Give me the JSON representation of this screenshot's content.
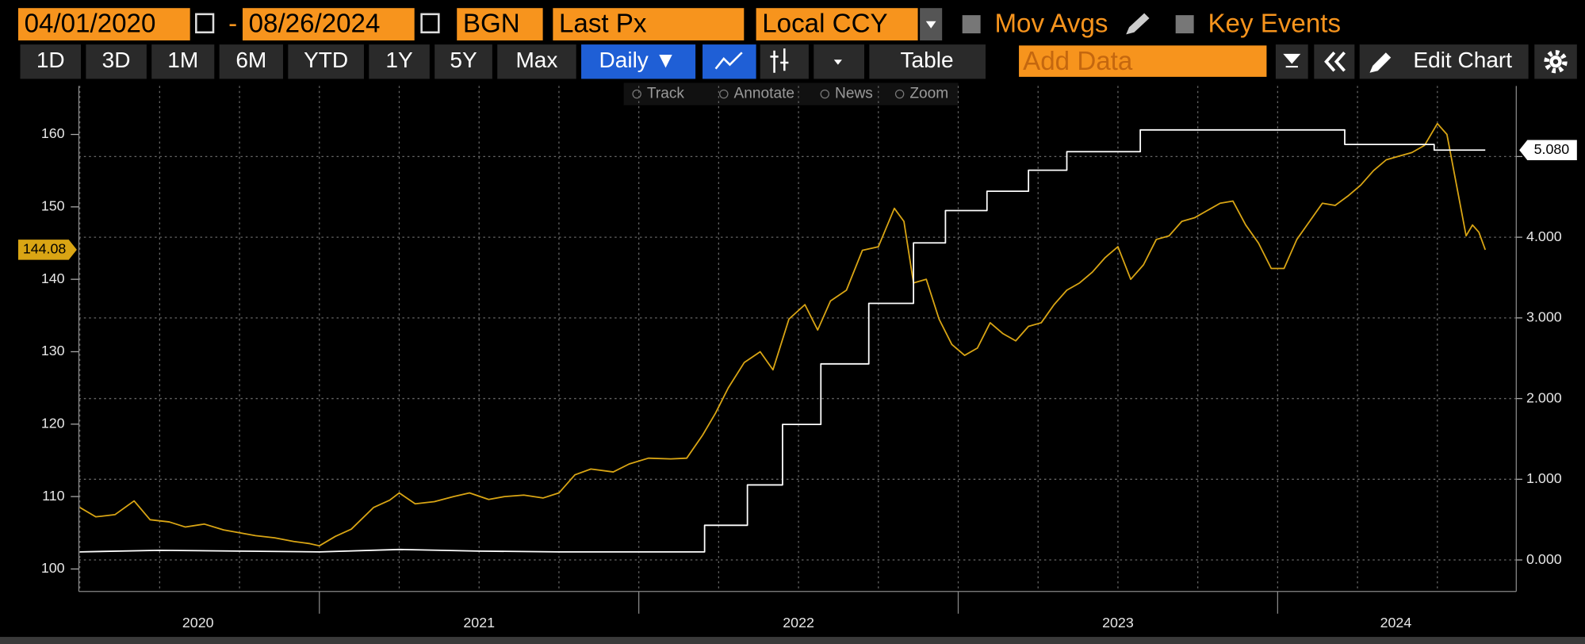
{
  "toolbar": {
    "start_date": "04/01/2020",
    "date_sep": "-",
    "end_date": "08/26/2024",
    "source": "BGN",
    "field": "Last Px",
    "currency": "Local CCY",
    "mov_avgs": "Mov Avgs",
    "key_events": "Key Events",
    "ranges": [
      "1D",
      "3D",
      "1M",
      "6M",
      "YTD",
      "1Y",
      "5Y",
      "Max"
    ],
    "frequency": "Daily ▼",
    "table": "Table",
    "add_data": "Add Data",
    "edit_chart": "Edit Chart",
    "tools": [
      "Track",
      "Annotate",
      "News",
      "Zoom"
    ]
  },
  "chart_data": {
    "type": "line",
    "xlim": [
      2020.247,
      2024.747
    ],
    "xticks": [
      {
        "value": 2020.62,
        "label": "2020"
      },
      {
        "value": 2021.5,
        "label": "2021"
      },
      {
        "value": 2022.5,
        "label": "2022"
      },
      {
        "value": 2023.5,
        "label": "2023"
      },
      {
        "value": 2024.37,
        "label": "2024"
      }
    ],
    "year_boundaries": [
      2021,
      2022,
      2023,
      2024
    ],
    "ylim": [
      96.9,
      166.7
    ],
    "yticks": [
      100,
      110,
      120,
      130,
      140,
      150,
      160
    ],
    "y2lim": [
      -0.39,
      5.875
    ],
    "y2ticks": [
      {
        "value": 0,
        "label": "0.000"
      },
      {
        "value": 1,
        "label": "1.000"
      },
      {
        "value": 2,
        "label": "2.000"
      },
      {
        "value": 3,
        "label": "3.000"
      },
      {
        "value": 4,
        "label": "4.000"
      },
      {
        "value": 5,
        "label": "5.000"
      }
    ],
    "grid": true,
    "series": [
      {
        "color": "#d9a514",
        "x": [
          2020.25,
          2020.3,
          2020.36,
          2020.42,
          2020.47,
          2020.53,
          2020.58,
          2020.64,
          2020.7,
          2020.75,
          2020.8,
          2020.86,
          2020.92,
          2020.97,
          2021.0,
          2021.05,
          2021.1,
          2021.17,
          2021.22,
          2021.25,
          2021.3,
          2021.36,
          2021.42,
          2021.47,
          2021.53,
          2021.58,
          2021.64,
          2021.7,
          2021.75,
          2021.8,
          2021.85,
          2021.92,
          2021.97,
          2022.03,
          2022.1,
          2022.15,
          2022.2,
          2022.24,
          2022.28,
          2022.33,
          2022.38,
          2022.42,
          2022.47,
          2022.52,
          2022.56,
          2022.6,
          2022.65,
          2022.7,
          2022.75,
          2022.8,
          2022.83,
          2022.86,
          2022.9,
          2022.94,
          2022.98,
          2023.02,
          2023.06,
          2023.1,
          2023.14,
          2023.18,
          2023.22,
          2023.26,
          2023.3,
          2023.34,
          2023.38,
          2023.42,
          2023.46,
          2023.5,
          2023.54,
          2023.58,
          2023.62,
          2023.66,
          2023.7,
          2023.74,
          2023.78,
          2023.82,
          2023.86,
          2023.9,
          2023.94,
          2023.98,
          2024.02,
          2024.06,
          2024.1,
          2024.14,
          2024.18,
          2024.22,
          2024.26,
          2024.3,
          2024.34,
          2024.38,
          2024.42,
          2024.46,
          2024.5,
          2024.53,
          2024.56,
          2024.59,
          2024.61,
          2024.63,
          2024.65
        ],
        "values": [
          108.5,
          107.2,
          107.5,
          109.4,
          106.8,
          106.5,
          105.8,
          106.2,
          105.4,
          105.0,
          104.6,
          104.3,
          103.8,
          103.5,
          103.2,
          104.5,
          105.5,
          108.5,
          109.5,
          110.5,
          109.0,
          109.3,
          110.0,
          110.5,
          109.6,
          110.0,
          110.2,
          109.8,
          110.5,
          113.0,
          113.8,
          113.4,
          114.5,
          115.3,
          115.2,
          115.3,
          118.5,
          121.5,
          125.0,
          128.5,
          130.0,
          127.5,
          134.5,
          136.5,
          133.0,
          137.0,
          138.5,
          144.0,
          144.5,
          149.8,
          148.0,
          139.5,
          140.0,
          134.5,
          131.0,
          129.5,
          130.5,
          134.0,
          132.5,
          131.5,
          133.5,
          134.0,
          136.5,
          138.5,
          139.5,
          141.0,
          143.0,
          144.5,
          140.0,
          142.0,
          145.5,
          146.0,
          148.0,
          148.5,
          149.5,
          150.5,
          150.8,
          147.5,
          145.0,
          141.5,
          141.5,
          145.5,
          148.0,
          150.5,
          150.2,
          151.5,
          153.0,
          155.0,
          156.5,
          157.0,
          157.5,
          158.5,
          161.5,
          160.0,
          153.0,
          146.0,
          147.5,
          146.5,
          144.08
        ]
      },
      {
        "color": "#ffffff",
        "axis": "y2",
        "last_label": "5.080",
        "x": [
          2020.25,
          2020.5,
          2020.75,
          2021.0,
          2021.25,
          2021.5,
          2021.75,
          2022.0,
          2022.206,
          2022.206,
          2022.34,
          2022.34,
          2022.45,
          2022.45,
          2022.57,
          2022.57,
          2022.72,
          2022.72,
          2022.86,
          2022.86,
          2022.96,
          2022.96,
          2023.09,
          2023.09,
          2023.22,
          2023.22,
          2023.34,
          2023.34,
          2023.57,
          2023.57,
          2024.21,
          2024.21,
          2024.49,
          2024.49,
          2024.65
        ],
        "values": [
          0.1,
          0.12,
          0.11,
          0.1,
          0.13,
          0.11,
          0.1,
          0.1,
          0.1,
          0.43,
          0.43,
          0.93,
          0.93,
          1.68,
          1.68,
          2.43,
          2.43,
          3.18,
          3.18,
          3.93,
          3.93,
          4.33,
          4.33,
          4.57,
          4.57,
          4.83,
          4.83,
          5.06,
          5.06,
          5.33,
          5.33,
          5.15,
          5.15,
          5.08,
          5.08
        ]
      }
    ]
  }
}
